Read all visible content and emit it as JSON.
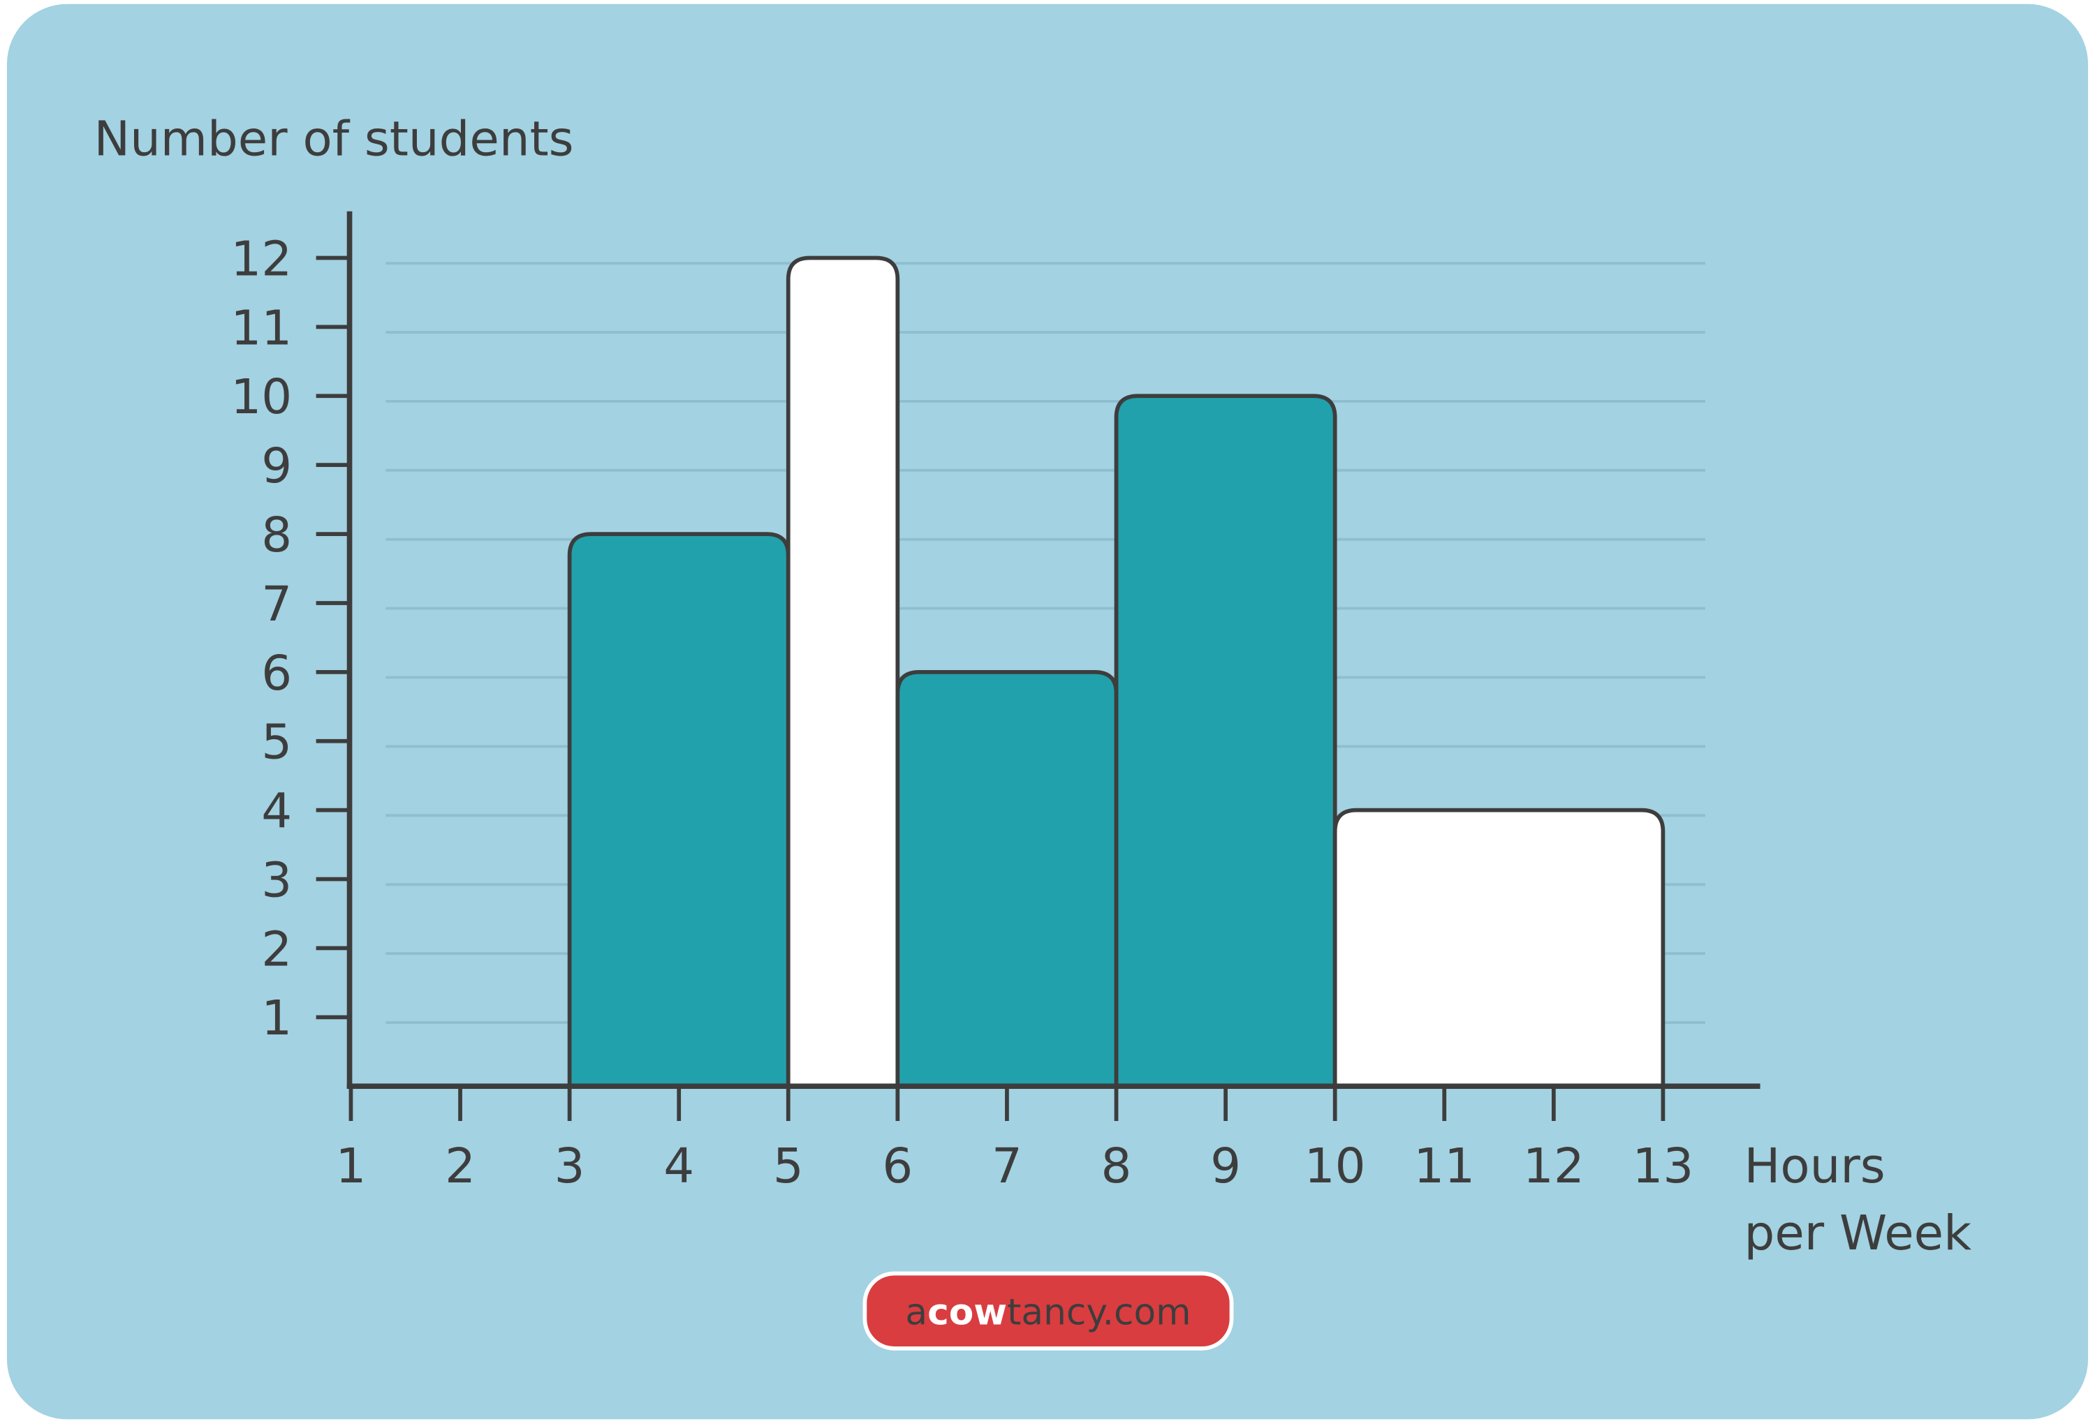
{
  "chart_data": {
    "type": "bar",
    "subtype": "histogram",
    "ylabel": "Number of students",
    "xlabel": [
      "Hours",
      "per Week"
    ],
    "x_ticks": [
      1,
      2,
      3,
      4,
      5,
      6,
      7,
      8,
      9,
      10,
      11,
      12,
      13
    ],
    "y_ticks": [
      1,
      2,
      3,
      4,
      5,
      6,
      7,
      8,
      9,
      10,
      11,
      12
    ],
    "xlim": [
      1,
      13.9
    ],
    "ylim": [
      0,
      13.3
    ],
    "grid": true,
    "bins": [
      {
        "from": 3,
        "to": 5,
        "value": 8,
        "color": "#21a1ac"
      },
      {
        "from": 5,
        "to": 6,
        "value": 12,
        "color": "#ffffff"
      },
      {
        "from": 6,
        "to": 8,
        "value": 6,
        "color": "#21a1ac"
      },
      {
        "from": 8,
        "to": 10,
        "value": 10,
        "color": "#21a1ac"
      },
      {
        "from": 10,
        "to": 13,
        "value": 4,
        "color": "#ffffff"
      }
    ]
  },
  "colors": {
    "background": "#a3d2e2",
    "grid": "#8fbfcf",
    "axis": "#3d3d3d",
    "logo": "#d93d40"
  },
  "logo": {
    "text": "acowtancy.com",
    "parts": [
      "a",
      "cow",
      "tancy.com"
    ]
  }
}
